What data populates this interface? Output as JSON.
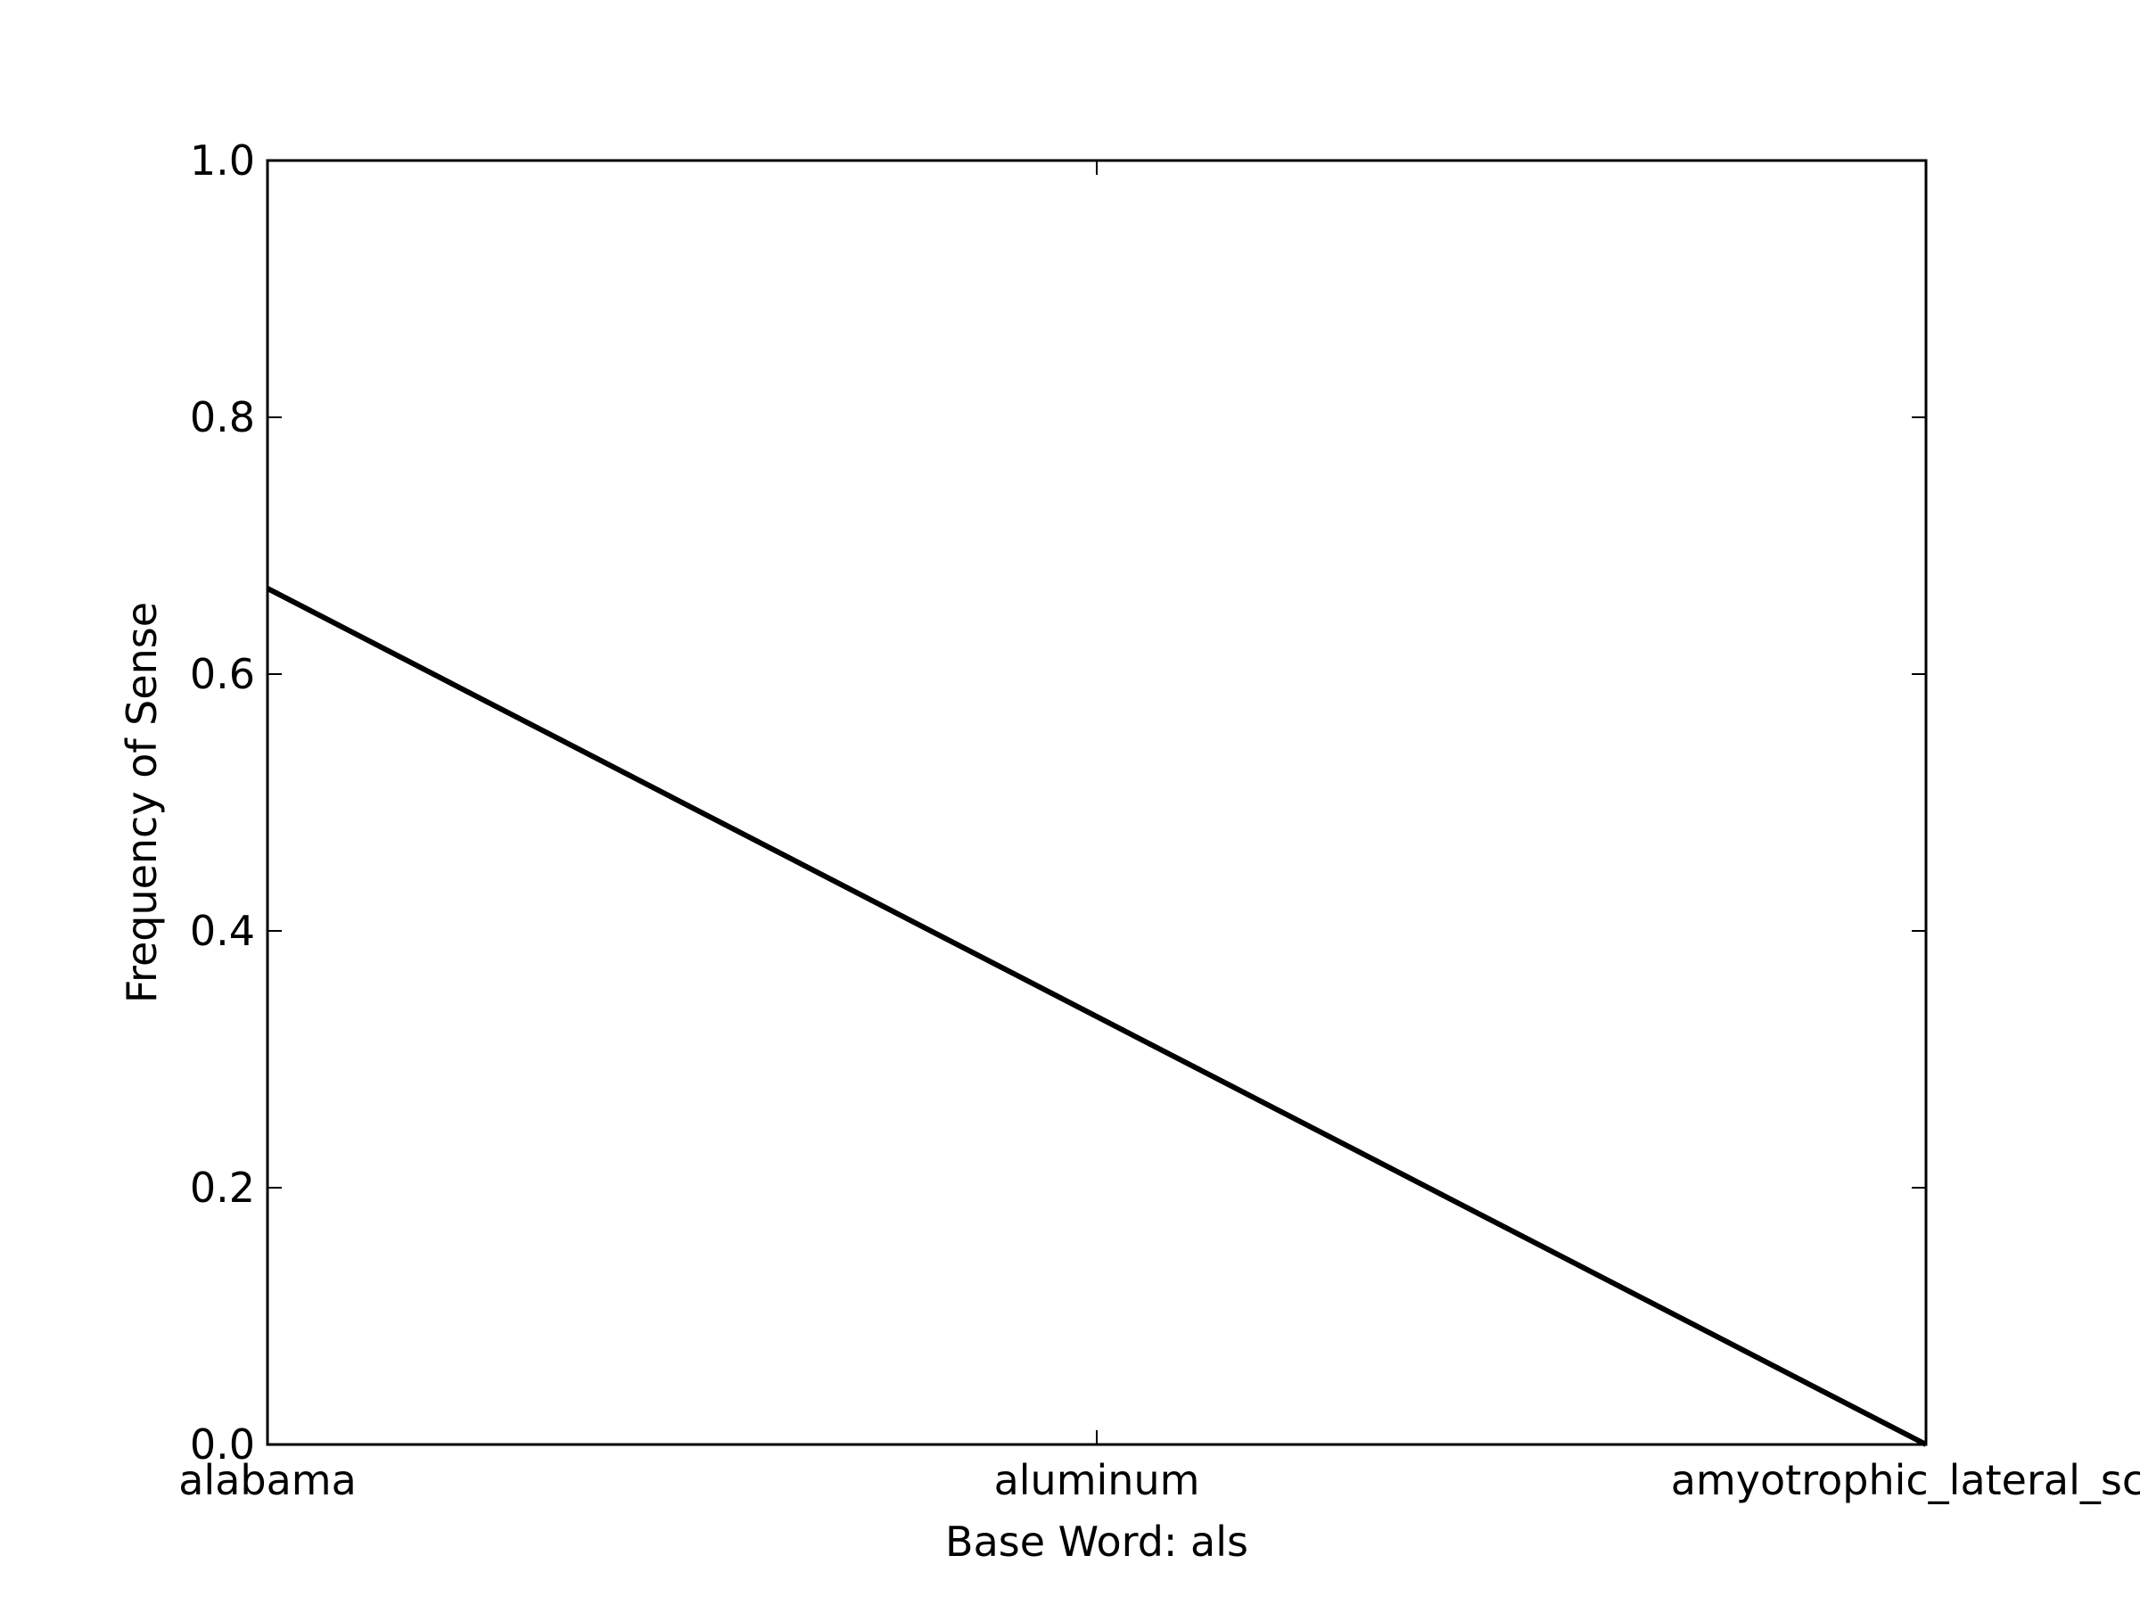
{
  "chart_data": {
    "type": "line",
    "categories": [
      "alabama",
      "aluminum",
      "amyotrophic_lateral_sclerosis"
    ],
    "x_tick_labels": [
      "alabama",
      "aluminum",
      "amyotrophic_lateral_scle"
    ],
    "series": [
      {
        "values": [
          0.6667,
          0.3333,
          0.0
        ]
      }
    ],
    "xlabel": "Base Word: als",
    "ylabel": "Frequency of Sense",
    "ylim": [
      0.0,
      1.0
    ],
    "y_ticks": [
      0.0,
      0.2,
      0.4,
      0.6,
      0.8,
      1.0
    ],
    "y_tick_labels": [
      "0.0",
      "0.2",
      "0.4",
      "0.6",
      "0.8",
      "1.0"
    ],
    "grid": false,
    "line_color": "#000000"
  }
}
